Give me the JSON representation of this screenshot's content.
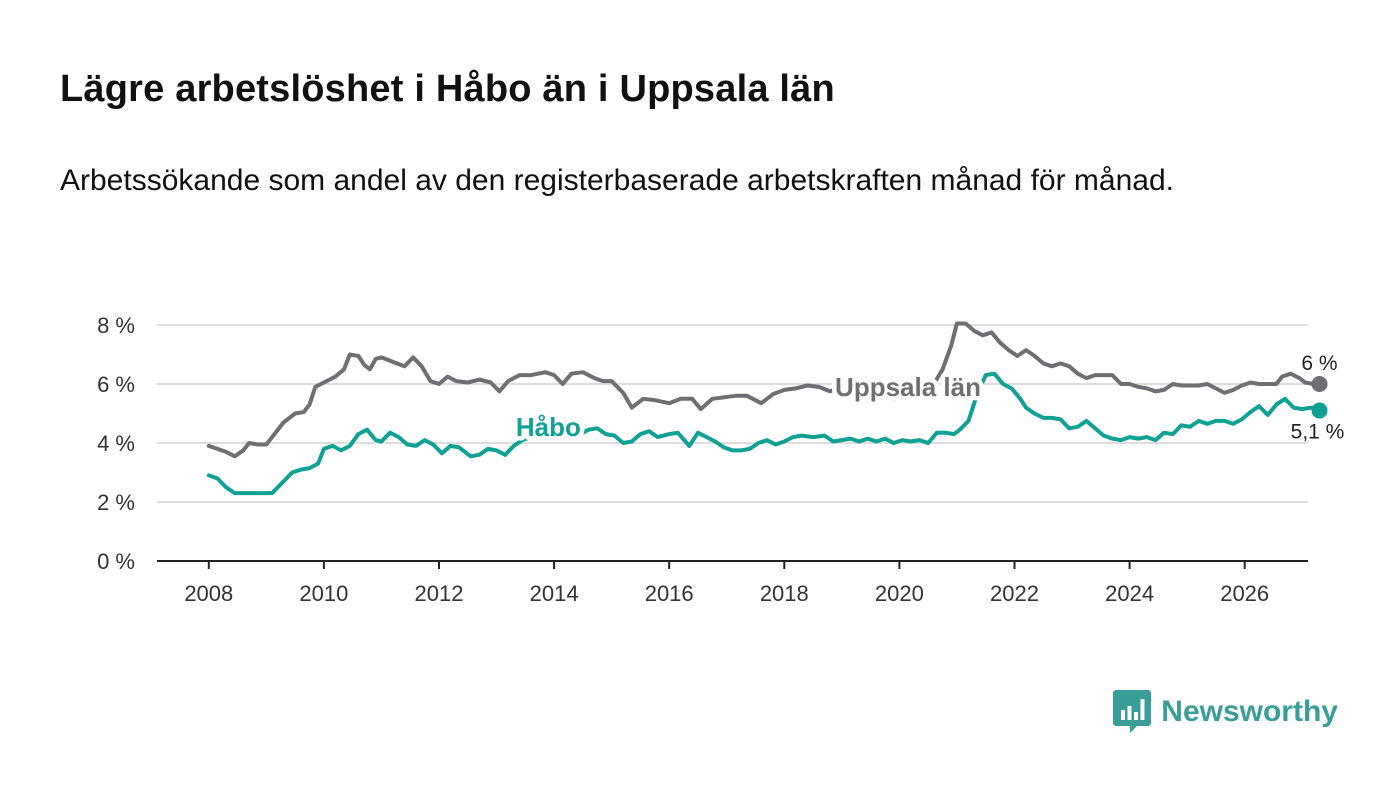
{
  "header": {
    "title": "Lägre arbetslöshet i Håbo än i Uppsala län",
    "subtitle": "Arbetssökande som andel av den registerbaserade arbetskraften månad för månad."
  },
  "brand": {
    "name": "Newsworthy",
    "icon": "newsworthy-logo-icon",
    "color": "#3a9e98"
  },
  "colors": {
    "uppsala": "#6e6e73",
    "habo": "#10a195",
    "grid": "#dddddd",
    "axis": "#222222"
  },
  "chart_data": {
    "type": "line",
    "title": "Lägre arbetslöshet i Håbo än i Uppsala län",
    "xlabel": "",
    "ylabel": "",
    "xlim": [
      2007.1,
      2027.1
    ],
    "ylim": [
      0,
      8
    ],
    "x_ticks": [
      2008,
      2010,
      2012,
      2014,
      2016,
      2018,
      2020,
      2022,
      2024,
      2026
    ],
    "x_tick_labels": [
      "2008",
      "2010",
      "2012",
      "2014",
      "2016",
      "2018",
      "2020",
      "2022",
      "2024",
      "2026"
    ],
    "y_ticks": [
      0,
      2,
      4,
      6,
      8
    ],
    "y_tick_labels": [
      "0 %",
      "2 %",
      "4 %",
      "6 %",
      "8 %"
    ],
    "grid": true,
    "series": [
      {
        "name": "Uppsala län",
        "color": "#6e6e73",
        "end_label": "6 %",
        "points": [
          [
            2008.0,
            3.9
          ],
          [
            2008.3,
            3.7
          ],
          [
            2008.45,
            3.55
          ],
          [
            2008.6,
            3.75
          ],
          [
            2008.7,
            4.0
          ],
          [
            2008.85,
            3.95
          ],
          [
            2009.0,
            3.95
          ],
          [
            2009.1,
            4.2
          ],
          [
            2009.3,
            4.7
          ],
          [
            2009.5,
            5.0
          ],
          [
            2009.65,
            5.05
          ],
          [
            2009.75,
            5.3
          ],
          [
            2009.85,
            5.9
          ],
          [
            2010.0,
            6.05
          ],
          [
            2010.2,
            6.25
          ],
          [
            2010.35,
            6.5
          ],
          [
            2010.45,
            7.0
          ],
          [
            2010.6,
            6.95
          ],
          [
            2010.7,
            6.65
          ],
          [
            2010.8,
            6.5
          ],
          [
            2010.9,
            6.85
          ],
          [
            2011.0,
            6.9
          ],
          [
            2011.2,
            6.75
          ],
          [
            2011.4,
            6.6
          ],
          [
            2011.55,
            6.9
          ],
          [
            2011.7,
            6.6
          ],
          [
            2011.85,
            6.1
          ],
          [
            2012.0,
            6.0
          ],
          [
            2012.15,
            6.25
          ],
          [
            2012.3,
            6.1
          ],
          [
            2012.5,
            6.05
          ],
          [
            2012.7,
            6.15
          ],
          [
            2012.9,
            6.05
          ],
          [
            2013.05,
            5.75
          ],
          [
            2013.2,
            6.1
          ],
          [
            2013.4,
            6.3
          ],
          [
            2013.6,
            6.3
          ],
          [
            2013.85,
            6.4
          ],
          [
            2014.0,
            6.3
          ],
          [
            2014.15,
            6.0
          ],
          [
            2014.3,
            6.35
          ],
          [
            2014.5,
            6.4
          ],
          [
            2014.7,
            6.2
          ],
          [
            2014.85,
            6.1
          ],
          [
            2015.0,
            6.1
          ],
          [
            2015.2,
            5.7
          ],
          [
            2015.35,
            5.2
          ],
          [
            2015.55,
            5.5
          ],
          [
            2015.75,
            5.45
          ],
          [
            2016.0,
            5.35
          ],
          [
            2016.2,
            5.5
          ],
          [
            2016.4,
            5.5
          ],
          [
            2016.55,
            5.15
          ],
          [
            2016.75,
            5.5
          ],
          [
            2016.95,
            5.55
          ],
          [
            2017.15,
            5.6
          ],
          [
            2017.35,
            5.6
          ],
          [
            2017.6,
            5.35
          ],
          [
            2017.8,
            5.65
          ],
          [
            2018.0,
            5.8
          ],
          [
            2018.2,
            5.85
          ],
          [
            2018.4,
            5.95
          ],
          [
            2018.6,
            5.9
          ],
          [
            2018.8,
            5.75
          ],
          [
            2019.0,
            5.95
          ],
          [
            2019.2,
            5.9
          ],
          [
            2019.4,
            6.0
          ],
          [
            2019.55,
            5.95
          ],
          [
            2019.75,
            5.7
          ],
          [
            2019.9,
            5.5
          ],
          [
            2020.05,
            5.85
          ],
          [
            2020.2,
            5.7
          ],
          [
            2020.35,
            6.15
          ],
          [
            2020.5,
            6.05
          ],
          [
            2020.6,
            6.0
          ],
          [
            2020.75,
            6.5
          ],
          [
            2020.9,
            7.3
          ],
          [
            2021.0,
            8.05
          ],
          [
            2021.15,
            8.05
          ],
          [
            2021.3,
            7.8
          ],
          [
            2021.45,
            7.65
          ],
          [
            2021.6,
            7.75
          ],
          [
            2021.75,
            7.4
          ],
          [
            2021.9,
            7.15
          ],
          [
            2022.05,
            6.95
          ],
          [
            2022.2,
            7.15
          ],
          [
            2022.35,
            6.95
          ],
          [
            2022.5,
            6.7
          ],
          [
            2022.65,
            6.6
          ],
          [
            2022.8,
            6.7
          ],
          [
            2022.95,
            6.6
          ],
          [
            2023.1,
            6.35
          ],
          [
            2023.25,
            6.2
          ],
          [
            2023.4,
            6.3
          ],
          [
            2023.55,
            6.3
          ],
          [
            2023.7,
            6.3
          ],
          [
            2023.85,
            6.0
          ],
          [
            2024.0,
            6.0
          ],
          [
            2024.15,
            5.9
          ],
          [
            2024.3,
            5.85
          ],
          [
            2024.45,
            5.75
          ],
          [
            2024.6,
            5.8
          ],
          [
            2024.75,
            6.0
          ],
          [
            2024.9,
            5.95
          ],
          [
            2025.05,
            5.95
          ],
          [
            2025.2,
            5.95
          ],
          [
            2025.35,
            6.0
          ],
          [
            2025.5,
            5.85
          ],
          [
            2025.65,
            5.7
          ],
          [
            2025.8,
            5.8
          ],
          [
            2025.95,
            5.95
          ],
          [
            2026.1,
            6.05
          ],
          [
            2026.25,
            6.0
          ],
          [
            2026.4,
            6.0
          ],
          [
            2026.55,
            6.0
          ],
          [
            2026.65,
            6.25
          ],
          [
            2026.8,
            6.35
          ],
          [
            2026.95,
            6.2
          ],
          [
            2027.05,
            6.05
          ],
          [
            2027.2,
            6.0
          ],
          [
            2027.3,
            6.0
          ]
        ]
      },
      {
        "name": "Håbo",
        "color": "#10a195",
        "end_label": "5,1 %",
        "points": [
          [
            2008.0,
            2.9
          ],
          [
            2008.15,
            2.8
          ],
          [
            2008.3,
            2.5
          ],
          [
            2008.45,
            2.3
          ],
          [
            2008.7,
            2.3
          ],
          [
            2009.0,
            2.3
          ],
          [
            2009.1,
            2.3
          ],
          [
            2009.25,
            2.6
          ],
          [
            2009.45,
            3.0
          ],
          [
            2009.6,
            3.1
          ],
          [
            2009.75,
            3.15
          ],
          [
            2009.9,
            3.3
          ],
          [
            2010.0,
            3.8
          ],
          [
            2010.15,
            3.9
          ],
          [
            2010.3,
            3.75
          ],
          [
            2010.45,
            3.9
          ],
          [
            2010.6,
            4.3
          ],
          [
            2010.75,
            4.45
          ],
          [
            2010.9,
            4.1
          ],
          [
            2011.0,
            4.05
          ],
          [
            2011.15,
            4.35
          ],
          [
            2011.3,
            4.2
          ],
          [
            2011.45,
            3.95
          ],
          [
            2011.6,
            3.9
          ],
          [
            2011.75,
            4.1
          ],
          [
            2011.9,
            3.95
          ],
          [
            2012.05,
            3.65
          ],
          [
            2012.2,
            3.9
          ],
          [
            2012.35,
            3.85
          ],
          [
            2012.55,
            3.55
          ],
          [
            2012.7,
            3.6
          ],
          [
            2012.85,
            3.8
          ],
          [
            2013.0,
            3.75
          ],
          [
            2013.15,
            3.6
          ],
          [
            2013.3,
            3.9
          ],
          [
            2013.45,
            4.1
          ],
          [
            2013.6,
            4.2
          ],
          [
            2013.75,
            4.45
          ],
          [
            2013.9,
            4.75
          ],
          [
            2014.1,
            4.55
          ],
          [
            2014.25,
            4.35
          ],
          [
            2014.4,
            4.25
          ],
          [
            2014.6,
            4.45
          ],
          [
            2014.75,
            4.5
          ],
          [
            2014.9,
            4.3
          ],
          [
            2015.05,
            4.25
          ],
          [
            2015.2,
            4.0
          ],
          [
            2015.35,
            4.05
          ],
          [
            2015.5,
            4.3
          ],
          [
            2015.65,
            4.4
          ],
          [
            2015.8,
            4.2
          ],
          [
            2016.0,
            4.3
          ],
          [
            2016.15,
            4.35
          ],
          [
            2016.35,
            3.9
          ],
          [
            2016.5,
            4.35
          ],
          [
            2016.65,
            4.2
          ],
          [
            2016.8,
            4.05
          ],
          [
            2016.95,
            3.85
          ],
          [
            2017.1,
            3.75
          ],
          [
            2017.25,
            3.75
          ],
          [
            2017.4,
            3.8
          ],
          [
            2017.55,
            4.0
          ],
          [
            2017.7,
            4.1
          ],
          [
            2017.85,
            3.95
          ],
          [
            2018.0,
            4.05
          ],
          [
            2018.15,
            4.2
          ],
          [
            2018.3,
            4.25
          ],
          [
            2018.5,
            4.2
          ],
          [
            2018.7,
            4.25
          ],
          [
            2018.85,
            4.05
          ],
          [
            2019.0,
            4.1
          ],
          [
            2019.15,
            4.15
          ],
          [
            2019.3,
            4.05
          ],
          [
            2019.45,
            4.15
          ],
          [
            2019.6,
            4.05
          ],
          [
            2019.75,
            4.15
          ],
          [
            2019.9,
            4.0
          ],
          [
            2020.05,
            4.1
          ],
          [
            2020.2,
            4.05
          ],
          [
            2020.35,
            4.1
          ],
          [
            2020.5,
            4.0
          ],
          [
            2020.65,
            4.35
          ],
          [
            2020.8,
            4.35
          ],
          [
            2020.95,
            4.3
          ],
          [
            2021.05,
            4.45
          ],
          [
            2021.2,
            4.75
          ],
          [
            2021.35,
            5.65
          ],
          [
            2021.5,
            6.3
          ],
          [
            2021.65,
            6.35
          ],
          [
            2021.8,
            6.0
          ],
          [
            2021.95,
            5.85
          ],
          [
            2022.1,
            5.5
          ],
          [
            2022.2,
            5.2
          ],
          [
            2022.35,
            5.0
          ],
          [
            2022.5,
            4.85
          ],
          [
            2022.65,
            4.85
          ],
          [
            2022.8,
            4.8
          ],
          [
            2022.95,
            4.5
          ],
          [
            2023.1,
            4.55
          ],
          [
            2023.25,
            4.75
          ],
          [
            2023.4,
            4.5
          ],
          [
            2023.55,
            4.25
          ],
          [
            2023.7,
            4.15
          ],
          [
            2023.85,
            4.1
          ],
          [
            2024.0,
            4.2
          ],
          [
            2024.15,
            4.15
          ],
          [
            2024.3,
            4.2
          ],
          [
            2024.45,
            4.1
          ],
          [
            2024.6,
            4.35
          ],
          [
            2024.75,
            4.3
          ],
          [
            2024.9,
            4.6
          ],
          [
            2025.05,
            4.55
          ],
          [
            2025.2,
            4.75
          ],
          [
            2025.35,
            4.65
          ],
          [
            2025.5,
            4.75
          ],
          [
            2025.65,
            4.75
          ],
          [
            2025.8,
            4.65
          ],
          [
            2025.95,
            4.8
          ],
          [
            2026.1,
            5.05
          ],
          [
            2026.25,
            5.25
          ],
          [
            2026.4,
            4.95
          ],
          [
            2026.55,
            5.3
          ],
          [
            2026.7,
            5.5
          ],
          [
            2026.85,
            5.2
          ],
          [
            2027.0,
            5.15
          ],
          [
            2027.15,
            5.2
          ],
          [
            2027.3,
            5.1
          ]
        ]
      }
    ],
    "annotations": [
      {
        "series": "Uppsala län",
        "label": "Uppsala län",
        "at_x": 2020.15,
        "at_y": 5.9
      },
      {
        "series": "Håbo",
        "label": "Håbo",
        "at_x": 2013.9,
        "at_y": 4.55
      }
    ]
  }
}
